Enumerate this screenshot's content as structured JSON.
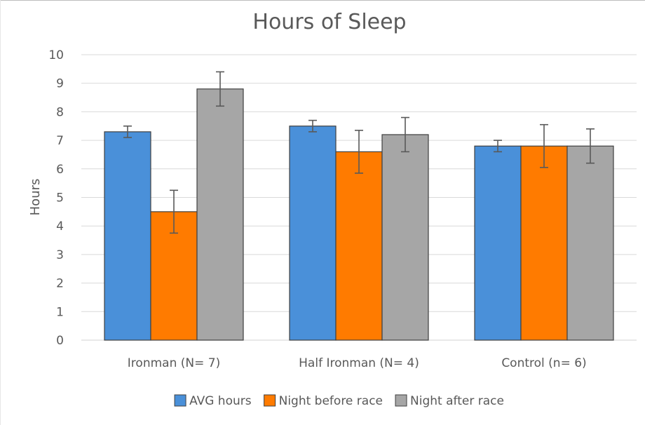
{
  "chart_data": {
    "type": "bar",
    "title": "Hours of Sleep",
    "xlabel": "",
    "ylabel": "Hours",
    "ylim": [
      0,
      10
    ],
    "yticks": [
      "0",
      "1",
      "2",
      "3",
      "4",
      "5",
      "6",
      "7",
      "8",
      "9",
      "10"
    ],
    "grid": true,
    "legend_position": "bottom",
    "categories": [
      "Ironman (N= 7)",
      "Half Ironman (N= 4)",
      "Control (n= 6)"
    ],
    "series": [
      {
        "name": "AVG hours",
        "color": "#4a90d9",
        "values": [
          7.3,
          7.5,
          6.8
        ],
        "error": [
          0.2,
          0.2,
          0.2
        ]
      },
      {
        "name": "Night before race",
        "color": "#ff7b00",
        "values": [
          4.5,
          6.6,
          6.8
        ],
        "error": [
          0.75,
          0.75,
          0.75
        ]
      },
      {
        "name": "Night after race",
        "color": "#a6a6a6",
        "values": [
          8.8,
          7.2,
          6.8
        ],
        "error": [
          0.6,
          0.6,
          0.6
        ]
      }
    ]
  }
}
